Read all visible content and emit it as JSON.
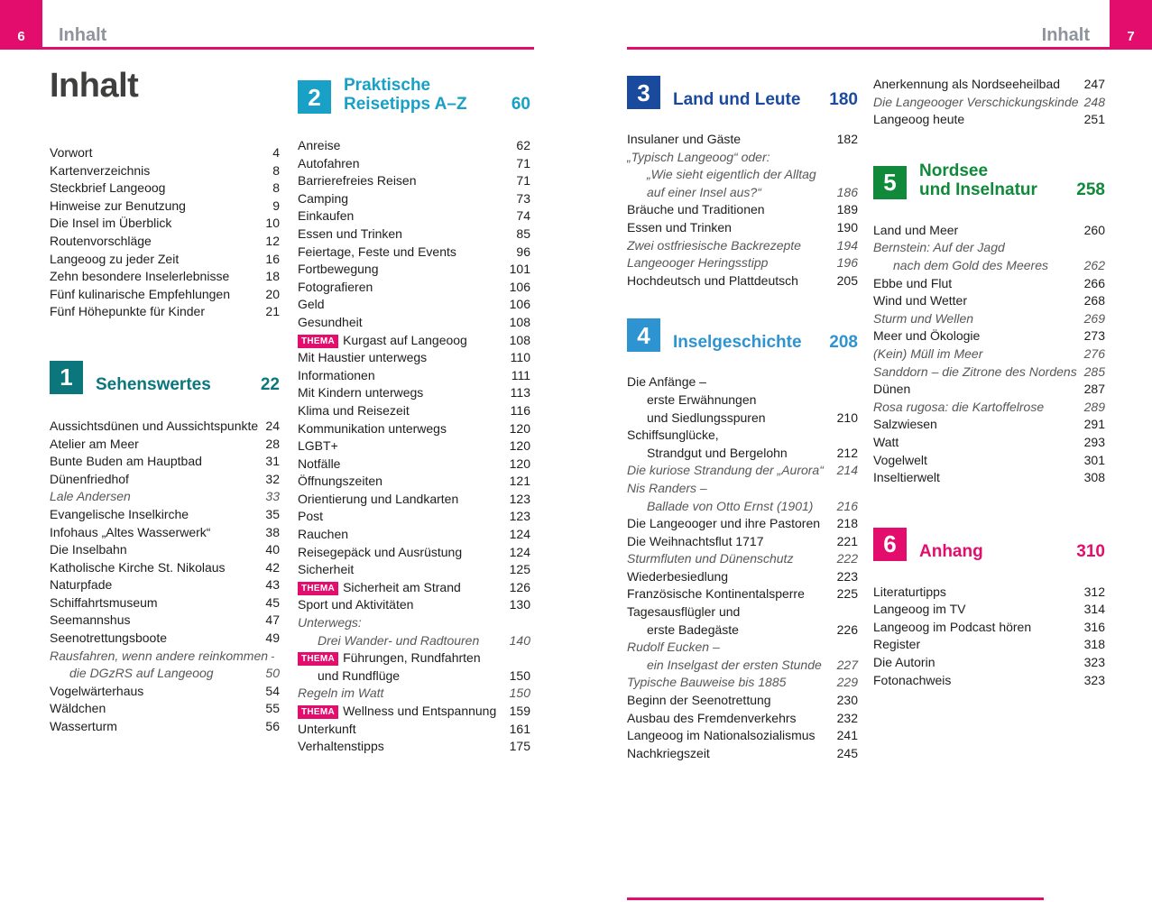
{
  "badges": {
    "thema": "THEMA"
  },
  "colors": {
    "accent_pink": "#e30d6e",
    "header_gray": "#8e939c",
    "body_text": "#1d1d1b",
    "subentry_gray": "#575756",
    "section1_teal": "#0b767c",
    "section2_cyan": "#18a0c6",
    "section3_navy": "#1a4a9e",
    "section4_blue": "#2e94d1",
    "section5_green": "#10893a",
    "section6_pink": "#e30d6e"
  },
  "left_page": {
    "header": {
      "page_number": "6",
      "title": "Inhalt"
    },
    "main_title": "Inhalt",
    "column1_blocks": [
      {
        "type": "list",
        "rows": [
          {
            "label": "Vorwort",
            "page": "4"
          },
          {
            "label": "Kartenverzeichnis",
            "page": "8"
          },
          {
            "label": "Steckbrief Langeoog",
            "page": "8"
          },
          {
            "label": "Hinweise zur Benutzung",
            "page": "9"
          },
          {
            "label": "Die Insel im Überblick",
            "page": "10"
          },
          {
            "label": "Routenvorschläge",
            "page": "12"
          },
          {
            "label": "Langeoog zu jeder Zeit",
            "page": "16"
          },
          {
            "label": "Zehn besondere Inselerlebnisse",
            "page": "18"
          },
          {
            "label": "Fünf kulinarische Empfehlungen",
            "page": "20"
          },
          {
            "label": "Fünf Höhepunkte für Kinder",
            "page": "21"
          }
        ]
      },
      {
        "type": "section",
        "number": "1",
        "title": "Sehenswertes",
        "page": "22",
        "color": "#0b767c"
      },
      {
        "type": "list",
        "rows": [
          {
            "label": "Aussichtsdünen und Aussichtspunkte",
            "page": "24"
          },
          {
            "label": "Atelier am Meer",
            "page": "28"
          },
          {
            "label": "Bunte Buden am Hauptbad",
            "page": "31"
          },
          {
            "label": "Dünenfriedhof",
            "page": "32"
          },
          {
            "label": "Lale Andersen",
            "page": "33",
            "italic": true
          },
          {
            "label": "Evangelische Inselkirche",
            "page": "35"
          },
          {
            "label": "Infohaus „Altes Wasserwerk“",
            "page": "38"
          },
          {
            "label": "Die Inselbahn",
            "page": "40"
          },
          {
            "label": "Katholische Kirche St. Nikolaus",
            "page": "42"
          },
          {
            "label": "Naturpfade",
            "page": "43"
          },
          {
            "label": "Schiffahrtsmuseum",
            "page": "45"
          },
          {
            "label": "Seemannshus",
            "page": "47"
          },
          {
            "label": "Seenotrettungsboote",
            "page": "49"
          },
          {
            "label": "Rausfahren, wenn andere reinkommen –",
            "page": "",
            "italic": true
          },
          {
            "label": "die DGzRS auf Langeoog",
            "page": "50",
            "italic": true,
            "indent": true
          },
          {
            "label": "Vogelwärterhaus",
            "page": "54"
          },
          {
            "label": "Wäldchen",
            "page": "55"
          },
          {
            "label": "Wasserturm",
            "page": "56"
          }
        ]
      }
    ],
    "column2_blocks": [
      {
        "type": "section",
        "number": "2",
        "title": "Praktische\nReisetipps A–Z",
        "page": "60",
        "color": "#18a0c6"
      },
      {
        "type": "list",
        "rows": [
          {
            "label": "Anreise",
            "page": "62"
          },
          {
            "label": "Autofahren",
            "page": "71"
          },
          {
            "label": "Barrierefreies Reisen",
            "page": "71"
          },
          {
            "label": "Camping",
            "page": "73"
          },
          {
            "label": "Einkaufen",
            "page": "74"
          },
          {
            "label": "Essen und Trinken",
            "page": "85"
          },
          {
            "label": "Feiertage, Feste und Events",
            "page": "96"
          },
          {
            "label": "Fortbewegung",
            "page": "101"
          },
          {
            "label": "Fotografieren",
            "page": "106"
          },
          {
            "label": "Geld",
            "page": "106"
          },
          {
            "label": "Gesundheit",
            "page": "108"
          },
          {
            "label": "Kurgast auf Langeoog",
            "page": "108",
            "thema": true
          },
          {
            "label": "Mit Haustier unterwegs",
            "page": "110"
          },
          {
            "label": "Informationen",
            "page": "111"
          },
          {
            "label": "Mit Kindern unterwegs",
            "page": "113"
          },
          {
            "label": "Klima und Reisezeit",
            "page": "116"
          },
          {
            "label": "Kommunikation unterwegs",
            "page": "120"
          },
          {
            "label": "LGBT+",
            "page": "120"
          },
          {
            "label": "Notfälle",
            "page": "120"
          },
          {
            "label": "Öffnungszeiten",
            "page": "121"
          },
          {
            "label": "Orientierung und Landkarten",
            "page": "123"
          },
          {
            "label": "Post",
            "page": "123"
          },
          {
            "label": "Rauchen",
            "page": "124"
          },
          {
            "label": "Reisegepäck und Ausrüstung",
            "page": "124"
          },
          {
            "label": "Sicherheit",
            "page": "125"
          },
          {
            "label": "Sicherheit am Strand",
            "page": "126",
            "thema": true
          },
          {
            "label": "Sport und Aktivitäten",
            "page": "130"
          },
          {
            "label": "Unterwegs:",
            "page": "",
            "italic": true
          },
          {
            "label": "Drei Wander- und Radtouren",
            "page": "140",
            "italic": true,
            "indent": true
          },
          {
            "label": "Führungen, Rundfahrten",
            "page": "",
            "thema": true
          },
          {
            "label": "und Rundflüge",
            "page": "150",
            "indent": true
          },
          {
            "label": "Regeln im Watt",
            "page": "150",
            "italic": true
          },
          {
            "label": "Wellness und Entspannung",
            "page": "159",
            "thema": true
          },
          {
            "label": "Unterkunft",
            "page": "161"
          },
          {
            "label": "Verhaltenstipps",
            "page": "175"
          }
        ]
      }
    ]
  },
  "right_page": {
    "header": {
      "page_number": "7",
      "title": "Inhalt"
    },
    "column1_blocks": [
      {
        "type": "section",
        "number": "3",
        "title": "Land und Leute",
        "page": "180",
        "color": "#1a4a9e"
      },
      {
        "type": "list",
        "rows": [
          {
            "label": "Insulaner und Gäste",
            "page": "182"
          },
          {
            "label": "„Typisch Langeoog“ oder:",
            "page": "",
            "italic": true
          },
          {
            "label": "„Wie sieht eigentlich der Alltag",
            "page": "",
            "italic": true,
            "indent": true
          },
          {
            "label": "auf einer Insel aus?“",
            "page": "186",
            "italic": true,
            "indent": true
          },
          {
            "label": "Bräuche und Traditionen",
            "page": "189"
          },
          {
            "label": "Essen und Trinken",
            "page": "190"
          },
          {
            "label": "Zwei ostfriesische Backrezepte",
            "page": "194",
            "italic": true
          },
          {
            "label": "Langeooger Heringsstipp",
            "page": "196",
            "italic": true
          },
          {
            "label": "Hochdeutsch und Plattdeutsch",
            "page": "205"
          }
        ]
      },
      {
        "type": "section",
        "number": "4",
        "title": "Inselgeschichte",
        "page": "208",
        "color": "#2e94d1"
      },
      {
        "type": "list",
        "rows": [
          {
            "label": "Die Anfänge –",
            "page": ""
          },
          {
            "label": "erste Erwähnungen",
            "page": "",
            "indent": true
          },
          {
            "label": "und Siedlungsspuren",
            "page": "210",
            "indent": true
          },
          {
            "label": "Schiffsunglücke,",
            "page": ""
          },
          {
            "label": "Strandgut und Bergelohn",
            "page": "212",
            "indent": true
          },
          {
            "label": "Die kuriose Strandung der „Aurora“",
            "page": "214",
            "italic": true
          },
          {
            "label": "Nis Randers –",
            "page": "",
            "italic": true
          },
          {
            "label": "Ballade von Otto Ernst (1901)",
            "page": "216",
            "italic": true,
            "indent": true
          },
          {
            "label": "Die Langeooger und ihre Pastoren",
            "page": "218"
          },
          {
            "label": "Die Weihnachtsflut 1717",
            "page": "221"
          },
          {
            "label": "Sturmfluten und Dünenschutz",
            "page": "222",
            "italic": true
          },
          {
            "label": "Wiederbesiedlung",
            "page": "223"
          },
          {
            "label": "Französische Kontinentalsperre",
            "page": "225"
          },
          {
            "label": "Tagesausflügler und",
            "page": ""
          },
          {
            "label": "erste Badegäste",
            "page": "226",
            "indent": true
          },
          {
            "label": "Rudolf Eucken –",
            "page": "",
            "italic": true
          },
          {
            "label": "ein Inselgast der ersten Stunde",
            "page": "227",
            "italic": true,
            "indent": true
          },
          {
            "label": "Typische Bauweise bis 1885",
            "page": "229",
            "italic": true
          },
          {
            "label": "Beginn der Seenotrettung",
            "page": "230"
          },
          {
            "label": "Ausbau des Fremdenverkehrs",
            "page": "232"
          },
          {
            "label": "Langeoog im Nationalsozialismus",
            "page": "241"
          },
          {
            "label": "Nachkriegszeit",
            "page": "245"
          }
        ]
      }
    ],
    "column2_blocks": [
      {
        "type": "list",
        "rows": [
          {
            "label": "Anerkennung als Nordseeheilbad",
            "page": "247"
          },
          {
            "label": "Die Langeooger Verschickungskinder",
            "page": "248",
            "italic": true
          },
          {
            "label": "Langeoog heute",
            "page": "251"
          }
        ]
      },
      {
        "type": "section",
        "number": "5",
        "title": "Nordsee\nund Inselnatur",
        "page": "258",
        "color": "#10893a"
      },
      {
        "type": "list",
        "rows": [
          {
            "label": "Land und Meer",
            "page": "260"
          },
          {
            "label": "Bernstein: Auf der Jagd",
            "page": "",
            "italic": true
          },
          {
            "label": "nach dem Gold des Meeres",
            "page": "262",
            "italic": true,
            "indent": true
          },
          {
            "label": "Ebbe und Flut",
            "page": "266"
          },
          {
            "label": "Wind und Wetter",
            "page": "268"
          },
          {
            "label": "Sturm und Wellen",
            "page": "269",
            "italic": true
          },
          {
            "label": "Meer und Ökologie",
            "page": "273"
          },
          {
            "label": "(Kein) Müll im Meer",
            "page": "276",
            "italic": true
          },
          {
            "label": "Sanddorn – die Zitrone des Nordens",
            "page": "285",
            "italic": true
          },
          {
            "label": "Dünen",
            "page": "287"
          },
          {
            "label": "Rosa rugosa: die Kartoffelrose",
            "page": "289",
            "italic": true
          },
          {
            "label": "Salzwiesen",
            "page": "291"
          },
          {
            "label": "Watt",
            "page": "293"
          },
          {
            "label": "Vogelwelt",
            "page": "301"
          },
          {
            "label": "Inseltierwelt",
            "page": "308"
          }
        ]
      },
      {
        "type": "section",
        "number": "6",
        "title": "Anhang",
        "page": "310",
        "color": "#e30d6e"
      },
      {
        "type": "list",
        "rows": [
          {
            "label": "Literaturtipps",
            "page": "312"
          },
          {
            "label": "Langeoog im TV",
            "page": "314"
          },
          {
            "label": "Langeoog im Podcast hören",
            "page": "316"
          },
          {
            "label": "Register",
            "page": "318"
          },
          {
            "label": "Die Autorin",
            "page": "323"
          },
          {
            "label": "Fotonachweis",
            "page": "323"
          }
        ]
      }
    ]
  }
}
